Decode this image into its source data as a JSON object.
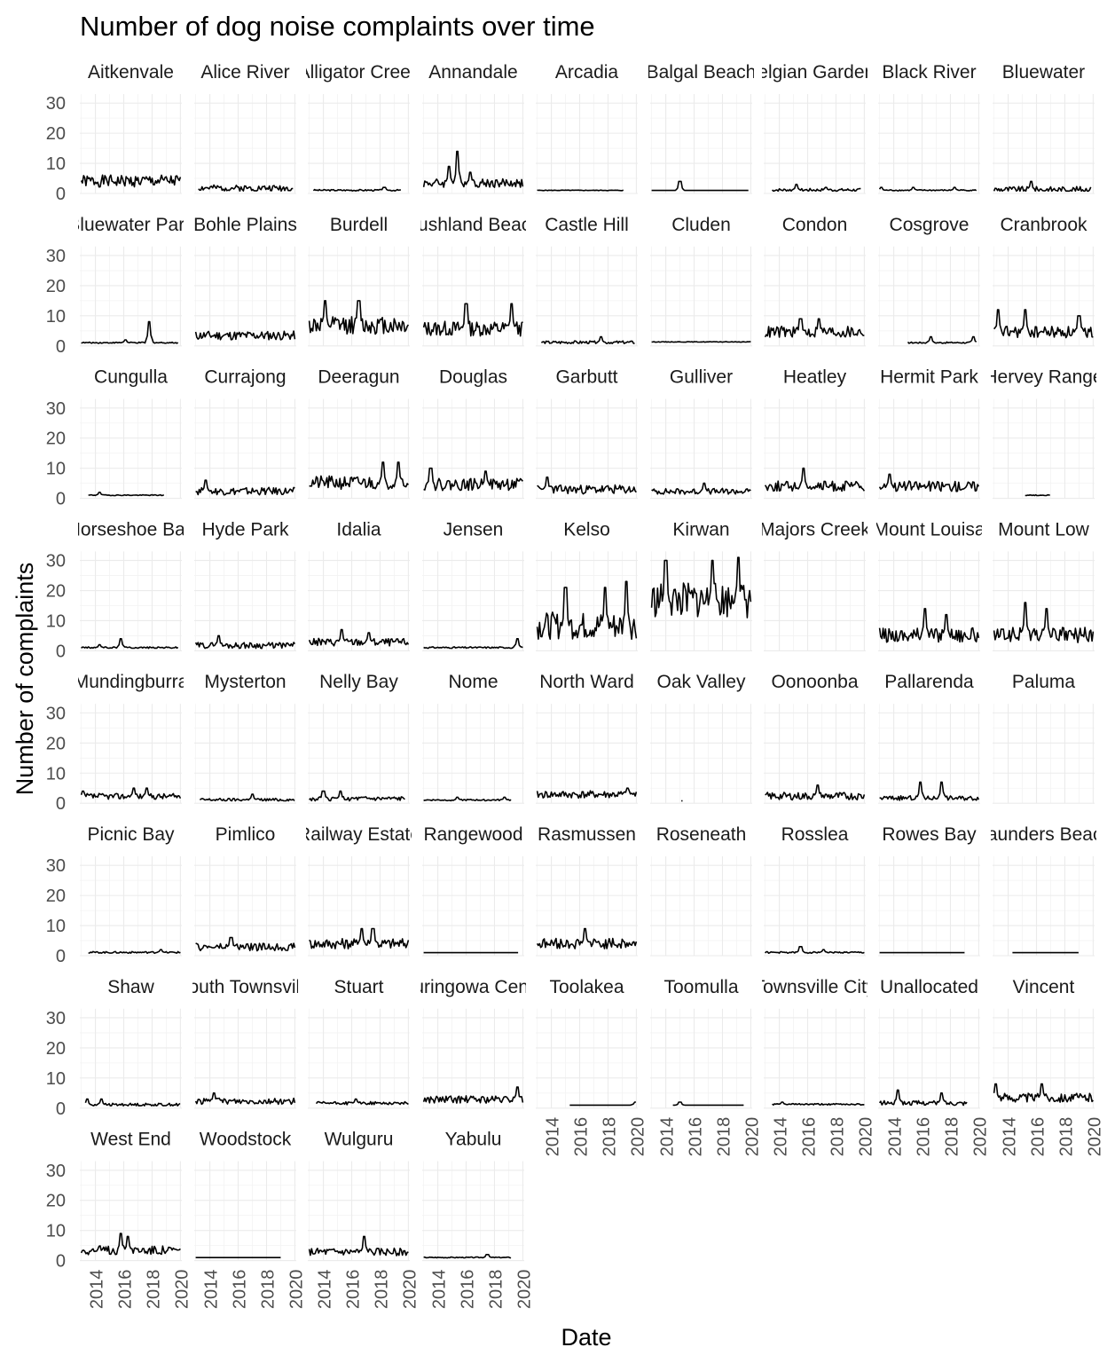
{
  "chart_data": {
    "type": "line",
    "title": "Number of dog noise complaints over time",
    "xlabel": "Date",
    "ylabel": "Number of complaints",
    "x_ticks": [
      "2014",
      "2016",
      "2018",
      "2020"
    ],
    "y_ticks": [
      "0",
      "10",
      "20",
      "30"
    ],
    "xlim": [
      2012.9,
      2020.1
    ],
    "ylim": [
      0,
      33
    ],
    "grid": true,
    "facets": [
      {
        "name": "Aitkenvale",
        "start": 2013,
        "end": 2020,
        "level": 3.5,
        "amp": 4,
        "spikes": [],
        "seed": 1
      },
      {
        "name": "Alice River",
        "start": 2013.2,
        "end": 2019.9,
        "level": 1.5,
        "amp": 2,
        "spikes": [],
        "seed": 2
      },
      {
        "name": "Alligator Creek",
        "start": 2013.3,
        "end": 2019.5,
        "level": 1,
        "amp": 0.5,
        "spikes": [
          [
            2018.3,
            2
          ]
        ],
        "seed": 3
      },
      {
        "name": "Annandale",
        "start": 2013,
        "end": 2020,
        "level": 3,
        "amp": 3,
        "spikes": [
          [
            2014.8,
            9
          ],
          [
            2015.4,
            14
          ],
          [
            2016.3,
            7
          ]
        ],
        "seed": 4
      },
      {
        "name": "Arcadia",
        "start": 2013,
        "end": 2019.1,
        "level": 1,
        "amp": 0.2,
        "spikes": [],
        "seed": 5
      },
      {
        "name": "Balgal Beach",
        "start": 2013,
        "end": 2019.9,
        "level": 1,
        "amp": 0,
        "spikes": [
          [
            2015,
            4
          ],
          [
            2019.5,
            1
          ]
        ],
        "seed": 6
      },
      {
        "name": "Belgian Gardens",
        "start": 2013.5,
        "end": 2019.8,
        "level": 1,
        "amp": 1,
        "spikes": [
          [
            2015.2,
            3
          ],
          [
            2017.3,
            2
          ]
        ],
        "seed": 7
      },
      {
        "name": "Black River",
        "start": 2013,
        "end": 2019.9,
        "level": 1,
        "amp": 0.4,
        "spikes": [
          [
            2013.1,
            2
          ],
          [
            2015.4,
            2
          ],
          [
            2018.3,
            2
          ]
        ],
        "seed": 8
      },
      {
        "name": "Bluewater",
        "start": 2013,
        "end": 2019.9,
        "level": 1,
        "amp": 2,
        "spikes": [
          [
            2015.6,
            4
          ]
        ],
        "seed": 9
      },
      {
        "name": "Bluewater Park",
        "start": 2013,
        "end": 2019.9,
        "level": 1,
        "amp": 0.4,
        "spikes": [
          [
            2016.1,
            2
          ],
          [
            2017.8,
            8
          ]
        ],
        "seed": 10
      },
      {
        "name": "Bohle Plains",
        "start": 2013,
        "end": 2020,
        "level": 3,
        "amp": 3,
        "spikes": [],
        "seed": 11
      },
      {
        "name": "Burdell",
        "start": 2013,
        "end": 2020,
        "level": 6,
        "amp": 6,
        "spikes": [
          [
            2014.1,
            15
          ],
          [
            2016.5,
            15
          ]
        ],
        "seed": 12
      },
      {
        "name": "Bushland Beach",
        "start": 2013,
        "end": 2020,
        "level": 5,
        "amp": 5,
        "spikes": [
          [
            2016,
            14
          ],
          [
            2019.2,
            14
          ]
        ],
        "seed": 13
      },
      {
        "name": "Castle Hill",
        "start": 2013.3,
        "end": 2019.9,
        "level": 1,
        "amp": 1,
        "spikes": [
          [
            2017.5,
            3
          ]
        ],
        "seed": 14
      },
      {
        "name": "Cluden",
        "start": 2013,
        "end": 2020,
        "level": 1.3,
        "amp": 0.2,
        "spikes": [],
        "seed": 15
      },
      {
        "name": "Condon",
        "start": 2013,
        "end": 2020,
        "level": 4,
        "amp": 4,
        "spikes": [
          [
            2015.5,
            9
          ],
          [
            2016.8,
            9
          ]
        ],
        "seed": 16
      },
      {
        "name": "Cosgrove",
        "start": 2015,
        "end": 2019.9,
        "level": 1,
        "amp": 0.5,
        "spikes": [
          [
            2016.6,
            3
          ],
          [
            2019.6,
            3
          ]
        ],
        "seed": 17
      },
      {
        "name": "Cranbrook",
        "start": 2013,
        "end": 2020,
        "level": 4,
        "amp": 4,
        "spikes": [
          [
            2013.3,
            12
          ],
          [
            2015.2,
            12
          ],
          [
            2019,
            10
          ]
        ],
        "seed": 18
      },
      {
        "name": "Cungulla",
        "start": 2013.5,
        "end": 2018.9,
        "level": 1,
        "amp": 0.3,
        "spikes": [
          [
            2014.3,
            2
          ]
        ],
        "seed": 19
      },
      {
        "name": "Currajong",
        "start": 2013,
        "end": 2020,
        "level": 2,
        "amp": 2.5,
        "spikes": [
          [
            2013.7,
            6
          ]
        ],
        "seed": 20
      },
      {
        "name": "Deeragun",
        "start": 2013,
        "end": 2020,
        "level": 4.5,
        "amp": 4.5,
        "spikes": [
          [
            2018.2,
            12
          ],
          [
            2019.3,
            12
          ]
        ],
        "seed": 21
      },
      {
        "name": "Douglas",
        "start": 2013,
        "end": 2020,
        "level": 4,
        "amp": 4,
        "spikes": [
          [
            2013.5,
            10
          ],
          [
            2017.4,
            9
          ]
        ],
        "seed": 22
      },
      {
        "name": "Garbutt",
        "start": 2013,
        "end": 2020,
        "level": 2.5,
        "amp": 3,
        "spikes": [
          [
            2013.7,
            7
          ]
        ],
        "seed": 23
      },
      {
        "name": "Gulliver",
        "start": 2013,
        "end": 2020,
        "level": 2,
        "amp": 2,
        "spikes": [
          [
            2016.7,
            5
          ]
        ],
        "seed": 24
      },
      {
        "name": "Heatley",
        "start": 2013,
        "end": 2020,
        "level": 3.5,
        "amp": 3.5,
        "spikes": [
          [
            2015.7,
            10
          ]
        ],
        "seed": 25
      },
      {
        "name": "Hermit Park",
        "start": 2013,
        "end": 2020,
        "level": 3.5,
        "amp": 3.5,
        "spikes": [
          [
            2013.7,
            8
          ]
        ],
        "seed": 26
      },
      {
        "name": "Hervey Range",
        "start": 2015.2,
        "end": 2017,
        "level": 1,
        "amp": 0.3,
        "spikes": [],
        "seed": 27
      },
      {
        "name": "Horseshoe Bay",
        "start": 2013,
        "end": 2019.9,
        "level": 1,
        "amp": 0.5,
        "spikes": [
          [
            2014.3,
            2
          ],
          [
            2015.8,
            4
          ]
        ],
        "seed": 28
      },
      {
        "name": "Hyde Park",
        "start": 2013,
        "end": 2020,
        "level": 1.5,
        "amp": 2,
        "spikes": [
          [
            2014.6,
            5
          ]
        ],
        "seed": 29
      },
      {
        "name": "Idalia",
        "start": 2013,
        "end": 2020,
        "level": 2.5,
        "amp": 2.5,
        "spikes": [
          [
            2015.3,
            7
          ],
          [
            2017.2,
            6
          ]
        ],
        "seed": 30
      },
      {
        "name": "Jensen",
        "start": 2013,
        "end": 2020,
        "level": 1,
        "amp": 0.5,
        "spikes": [
          [
            2019.6,
            4
          ]
        ],
        "seed": 31
      },
      {
        "name": "Kelso",
        "start": 2013,
        "end": 2020,
        "level": 7,
        "amp": 9,
        "spikes": [
          [
            2015,
            21
          ],
          [
            2017.8,
            21
          ],
          [
            2019.3,
            23
          ]
        ],
        "seed": 32
      },
      {
        "name": "Kirwan",
        "start": 2013,
        "end": 2020,
        "level": 15,
        "amp": 12,
        "spikes": [
          [
            2014,
            30
          ],
          [
            2017.3,
            30
          ],
          [
            2019.1,
            31
          ]
        ],
        "seed": 33
      },
      {
        "name": "Majors Creek",
        "start": 0,
        "end": 0,
        "level": 0,
        "amp": 0,
        "spikes": [],
        "seed": 34
      },
      {
        "name": "Mount Louisa",
        "start": 2013,
        "end": 2020,
        "level": 4.5,
        "amp": 5,
        "spikes": [
          [
            2016.2,
            14
          ],
          [
            2017.7,
            12
          ]
        ],
        "seed": 35
      },
      {
        "name": "Mount Low",
        "start": 2013,
        "end": 2020,
        "level": 4.5,
        "amp": 5,
        "spikes": [
          [
            2015.2,
            16
          ],
          [
            2016.7,
            14
          ]
        ],
        "seed": 36
      },
      {
        "name": "Mundingburra",
        "start": 2013,
        "end": 2020,
        "level": 2,
        "amp": 2,
        "spikes": [
          [
            2013.1,
            4
          ],
          [
            2016.7,
            5
          ],
          [
            2017.6,
            5
          ]
        ],
        "seed": 37
      },
      {
        "name": "Mysterton",
        "start": 2013.3,
        "end": 2020,
        "level": 1,
        "amp": 1,
        "spikes": [
          [
            2017,
            3
          ]
        ],
        "seed": 38
      },
      {
        "name": "Nelly Bay",
        "start": 2013,
        "end": 2019.8,
        "level": 1.2,
        "amp": 1.5,
        "spikes": [
          [
            2014,
            4
          ],
          [
            2015.2,
            4
          ]
        ],
        "seed": 39
      },
      {
        "name": "Nome",
        "start": 2013,
        "end": 2019.2,
        "level": 1,
        "amp": 0.5,
        "spikes": [
          [
            2015.4,
            2
          ],
          [
            2018.7,
            2
          ]
        ],
        "seed": 40
      },
      {
        "name": "North Ward",
        "start": 2013,
        "end": 2020,
        "level": 2.5,
        "amp": 2.5,
        "spikes": [
          [
            2019.4,
            5
          ]
        ],
        "seed": 41
      },
      {
        "name": "Oak Valley",
        "start": 2015.1,
        "end": 2015.2,
        "level": 0.4,
        "amp": 0,
        "spikes": [],
        "seed": 42
      },
      {
        "name": "Oonoonba",
        "start": 2013,
        "end": 2020,
        "level": 2,
        "amp": 2.5,
        "spikes": [
          [
            2016.7,
            6
          ]
        ],
        "seed": 43
      },
      {
        "name": "Pallarenda",
        "start": 2013,
        "end": 2020,
        "level": 1.5,
        "amp": 1.5,
        "spikes": [
          [
            2015.9,
            7
          ],
          [
            2017.4,
            7
          ]
        ],
        "seed": 44
      },
      {
        "name": "Paluma",
        "start": 0,
        "end": 0,
        "level": 0,
        "amp": 0,
        "spikes": [],
        "seed": 45
      },
      {
        "name": "Picnic Bay",
        "start": 2013.5,
        "end": 2020,
        "level": 1,
        "amp": 0.6,
        "spikes": [
          [
            2018.6,
            2
          ]
        ],
        "seed": 46
      },
      {
        "name": "Pimlico",
        "start": 2013,
        "end": 2020,
        "level": 2.5,
        "amp": 2.5,
        "spikes": [
          [
            2015.5,
            6
          ]
        ],
        "seed": 47
      },
      {
        "name": "Railway Estate",
        "start": 2013,
        "end": 2020,
        "level": 3.5,
        "amp": 3.5,
        "spikes": [
          [
            2016.7,
            9
          ],
          [
            2017.5,
            9
          ]
        ],
        "seed": 48
      },
      {
        "name": "Rangewood",
        "start": 2013,
        "end": 2019.7,
        "level": 1,
        "amp": 0,
        "spikes": [],
        "seed": 49
      },
      {
        "name": "Rasmussen",
        "start": 2013,
        "end": 2020,
        "level": 3.5,
        "amp": 3.5,
        "spikes": [
          [
            2016.4,
            9
          ]
        ],
        "seed": 50
      },
      {
        "name": "Roseneath",
        "start": 0,
        "end": 0,
        "level": 0,
        "amp": 0,
        "spikes": [],
        "seed": 51
      },
      {
        "name": "Rosslea",
        "start": 2013,
        "end": 2020,
        "level": 1,
        "amp": 0.5,
        "spikes": [
          [
            2015.5,
            3
          ],
          [
            2017.1,
            2
          ]
        ],
        "seed": 52
      },
      {
        "name": "Rowes Bay",
        "start": 2013,
        "end": 2019,
        "level": 1,
        "amp": 0,
        "spikes": [],
        "seed": 53
      },
      {
        "name": "Saunders Beach",
        "start": 2014.3,
        "end": 2019,
        "level": 1,
        "amp": 0,
        "spikes": [],
        "seed": 54
      },
      {
        "name": "Shaw",
        "start": 2013.3,
        "end": 2020,
        "level": 1,
        "amp": 1,
        "spikes": [
          [
            2013.4,
            3
          ],
          [
            2014.4,
            3
          ]
        ],
        "seed": 55
      },
      {
        "name": "South Townsville",
        "start": 2013,
        "end": 2020,
        "level": 2,
        "amp": 2,
        "spikes": [
          [
            2014.3,
            5
          ]
        ],
        "seed": 56
      },
      {
        "name": "Stuart",
        "start": 2013.5,
        "end": 2020,
        "level": 1.5,
        "amp": 1,
        "spikes": [
          [
            2016.3,
            3
          ]
        ],
        "seed": 57
      },
      {
        "name": "Thuringowa Central",
        "start": 2013,
        "end": 2020,
        "level": 2.5,
        "amp": 2.5,
        "spikes": [
          [
            2019.6,
            7
          ]
        ],
        "seed": 58
      },
      {
        "name": "Toolakea",
        "start": 2015.3,
        "end": 2020,
        "level": 1,
        "amp": 0,
        "spikes": [
          [
            2019.9,
            2
          ]
        ],
        "seed": 59
      },
      {
        "name": "Toomulla",
        "start": 2014.5,
        "end": 2019.5,
        "level": 1,
        "amp": 0,
        "spikes": [
          [
            2015,
            2
          ]
        ],
        "seed": 60
      },
      {
        "name": "Townsville City",
        "start": 2013.5,
        "end": 2020,
        "level": 1.2,
        "amp": 0.5,
        "spikes": [
          [
            2014.2,
            2
          ]
        ],
        "seed": 61
      },
      {
        "name": "Unallocated",
        "start": 2013,
        "end": 2019.2,
        "level": 1.5,
        "amp": 1.5,
        "spikes": [
          [
            2014.3,
            6
          ],
          [
            2017.4,
            5
          ]
        ],
        "seed": 62
      },
      {
        "name": "Vincent",
        "start": 2013,
        "end": 2020,
        "level": 3,
        "amp": 3,
        "spikes": [
          [
            2013.1,
            8
          ],
          [
            2016.4,
            8
          ]
        ],
        "seed": 63
      },
      {
        "name": "West End",
        "start": 2013,
        "end": 2020,
        "level": 3,
        "amp": 3,
        "spikes": [
          [
            2015.8,
            9
          ],
          [
            2016.3,
            8
          ]
        ],
        "seed": 64
      },
      {
        "name": "Woodstock",
        "start": 2013,
        "end": 2019,
        "level": 1,
        "amp": 0,
        "spikes": [],
        "seed": 65
      },
      {
        "name": "Wulguru",
        "start": 2013,
        "end": 2020,
        "level": 2.5,
        "amp": 2.5,
        "spikes": [
          [
            2016.9,
            8
          ]
        ],
        "seed": 66
      },
      {
        "name": "Yabulu",
        "start": 2013,
        "end": 2019.2,
        "level": 1,
        "amp": 0.3,
        "spikes": [
          [
            2017.5,
            2
          ]
        ],
        "seed": 67
      }
    ]
  }
}
